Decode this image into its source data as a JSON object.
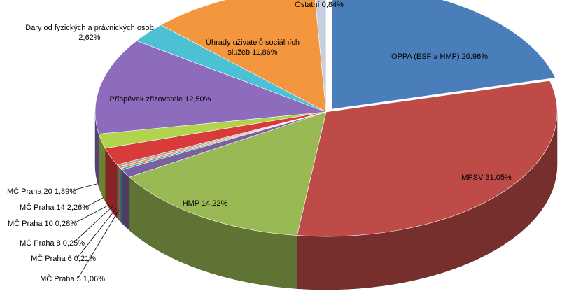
{
  "chart_data": {
    "type": "pie",
    "style": "3d-exploded",
    "slices": [
      {
        "label": "OPPA (ESF a HMP) 20,96%",
        "value": 20.96,
        "color": "#4a7ebb"
      },
      {
        "label": "MPSV 31,05%",
        "value": 31.05,
        "color": "#be4b48"
      },
      {
        "label": "HMP 14,22%",
        "value": 14.22,
        "color": "#98b954"
      },
      {
        "label": "MČ Praha 5 1,06%",
        "value": 1.06,
        "color": "#7d60a0"
      },
      {
        "label": "MČ Praha 6 0,21%",
        "value": 0.21,
        "color": "#46aac5"
      },
      {
        "label": "MČ Praha 8 0,25%",
        "value": 0.25,
        "color": "#f79646"
      },
      {
        "label": "MČ Praha 10 0,28%",
        "value": 0.28,
        "color": "#a5a5a5"
      },
      {
        "label": "MČ Praha 14 2,26%",
        "value": 2.26,
        "color": "#d93a3a"
      },
      {
        "label": "MČ Praha 20 1,89%",
        "value": 1.89,
        "color": "#b1d44f"
      },
      {
        "label": "Příspěvek zřizovatele 12,50%",
        "value": 12.5,
        "color": "#8d6bbd"
      },
      {
        "label": "Dary od fyzických a právnických osob 2,62%",
        "value": 2.62,
        "color": "#4bc1d3"
      },
      {
        "label": "Úhrady uživatelů sociálních služeb 11,86%",
        "value": 11.86,
        "color": "#f4963e"
      },
      {
        "label": "Ostatní 0,84%",
        "value": 0.84,
        "color": "#c6cfe0"
      }
    ]
  }
}
